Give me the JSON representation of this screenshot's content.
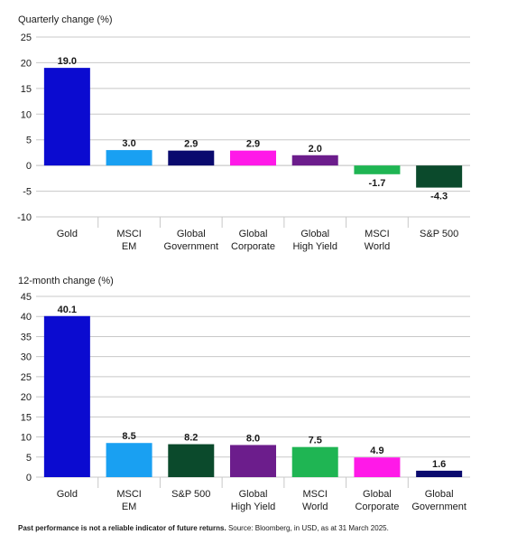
{
  "chart_data": [
    {
      "type": "bar",
      "title": "Quarterly change (%)",
      "categories": [
        [
          "Gold"
        ],
        [
          "MSCI",
          "EM"
        ],
        [
          "Global",
          "Government"
        ],
        [
          "Global",
          "Corporate"
        ],
        [
          "Global",
          "High Yield"
        ],
        [
          "MSCI",
          "World"
        ],
        [
          "S&P 500"
        ]
      ],
      "values": [
        19.0,
        3.0,
        2.9,
        2.9,
        2.0,
        -1.7,
        -4.3
      ],
      "value_labels": [
        "19.0",
        "3.0",
        "2.9",
        "2.9",
        "2.0",
        "-1.7",
        "-4.3"
      ],
      "colors": [
        "#0b0bd0",
        "#19a0f2",
        "#0a0a6e",
        "#ff19e8",
        "#6c1d8c",
        "#1fb553",
        "#0b4a2c"
      ],
      "ylim": [
        -10,
        25
      ],
      "yticks": [
        -10,
        -5,
        0,
        5,
        10,
        15,
        20,
        25
      ],
      "grid": true,
      "xlabel": "",
      "ylabel": ""
    },
    {
      "type": "bar",
      "title": "12-month change (%)",
      "categories": [
        [
          "Gold"
        ],
        [
          "MSCI",
          "EM"
        ],
        [
          "S&P 500"
        ],
        [
          "Global",
          "High Yield"
        ],
        [
          "MSCI",
          "World"
        ],
        [
          "Global",
          "Corporate"
        ],
        [
          "Global",
          "Government"
        ]
      ],
      "values": [
        40.1,
        8.5,
        8.2,
        8.0,
        7.5,
        4.9,
        1.6
      ],
      "value_labels": [
        "40.1",
        "8.5",
        "8.2",
        "8.0",
        "7.5",
        "4.9",
        "1.6"
      ],
      "colors": [
        "#0b0bd0",
        "#19a0f2",
        "#0b4a2c",
        "#6c1d8c",
        "#1fb553",
        "#ff19e8",
        "#0a0a6e"
      ],
      "ylim": [
        0,
        45
      ],
      "yticks": [
        0,
        5,
        10,
        15,
        20,
        25,
        30,
        35,
        40,
        45
      ],
      "grid": true,
      "xlabel": "",
      "ylabel": ""
    }
  ],
  "footnote": {
    "bold": "Past performance is not a reliable indicator of future returns.",
    "text": " Source: Bloomberg, in USD, as at 31 March 2025."
  }
}
